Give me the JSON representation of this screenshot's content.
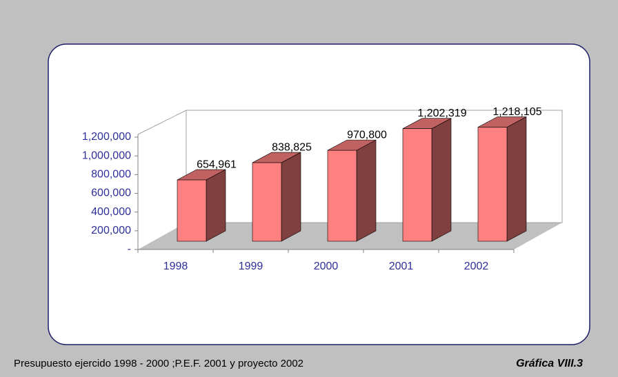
{
  "chart_data": {
    "type": "bar3d",
    "categories": [
      "1998",
      "1999",
      "2000",
      "2001",
      "2002"
    ],
    "values": [
      654961,
      838825,
      970800,
      1202319,
      1218105
    ],
    "value_labels": [
      "654,961",
      "838,825",
      "970,800",
      "1,202,319",
      "1,218,105"
    ],
    "color": "#ff8080",
    "ylim": [
      0,
      1200000
    ],
    "yticks": [
      {
        "value": 0,
        "label": "-"
      },
      {
        "value": 200000,
        "label": "200,000"
      },
      {
        "value": 400000,
        "label": "400,000"
      },
      {
        "value": 600000,
        "label": "600,000"
      },
      {
        "value": 800000,
        "label": "800,000"
      },
      {
        "value": 1000000,
        "label": "1,000,000"
      },
      {
        "value": 1200000,
        "label": "1,200,000"
      }
    ],
    "footnote": "Presupuesto ejercido 1998 - 2000 ;P.E.F. 2001 y proyecto 2002",
    "figure_label": "Gráfica VIII.3"
  }
}
